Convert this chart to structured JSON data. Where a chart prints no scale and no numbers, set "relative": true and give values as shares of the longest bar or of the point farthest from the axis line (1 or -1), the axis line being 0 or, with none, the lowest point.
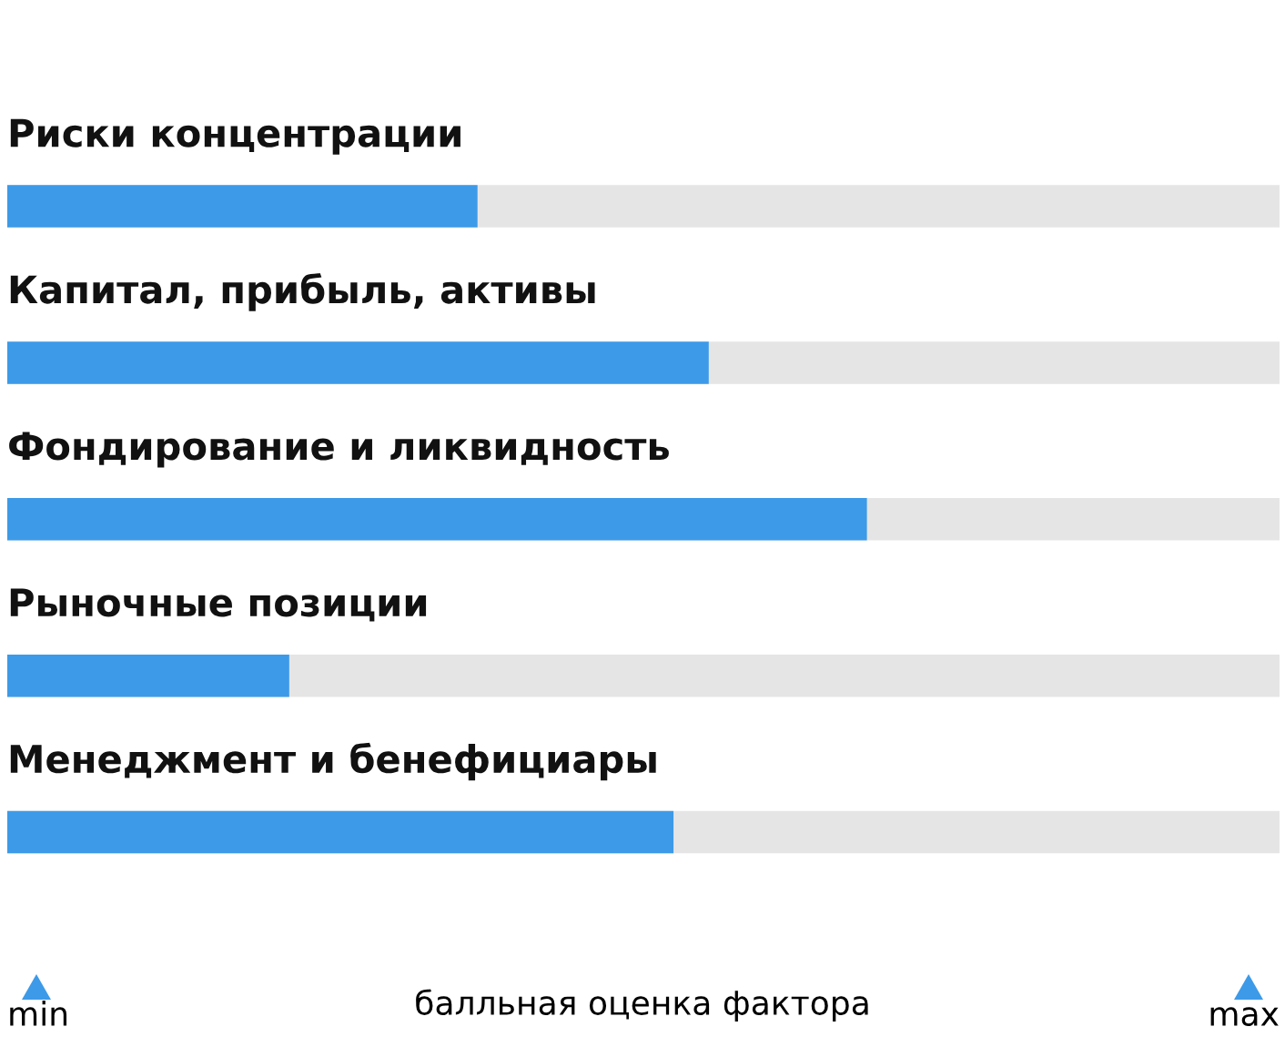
{
  "chart_data": {
    "type": "bar",
    "orientation": "horizontal",
    "relative": true,
    "categories": [
      "Риски концентрации",
      "Капитал, прибыль, активы",
      "Фондирование и ликвидность",
      "Рыночные позиции",
      "Менеджмент и бенефициары"
    ],
    "values": [
      0.547,
      0.816,
      1,
      0.328,
      0.775
    ],
    "color": "#3d9ae8",
    "xlabel": "балльная оценка фактора",
    "annotations": [
      "min",
      "max"
    ]
  }
}
